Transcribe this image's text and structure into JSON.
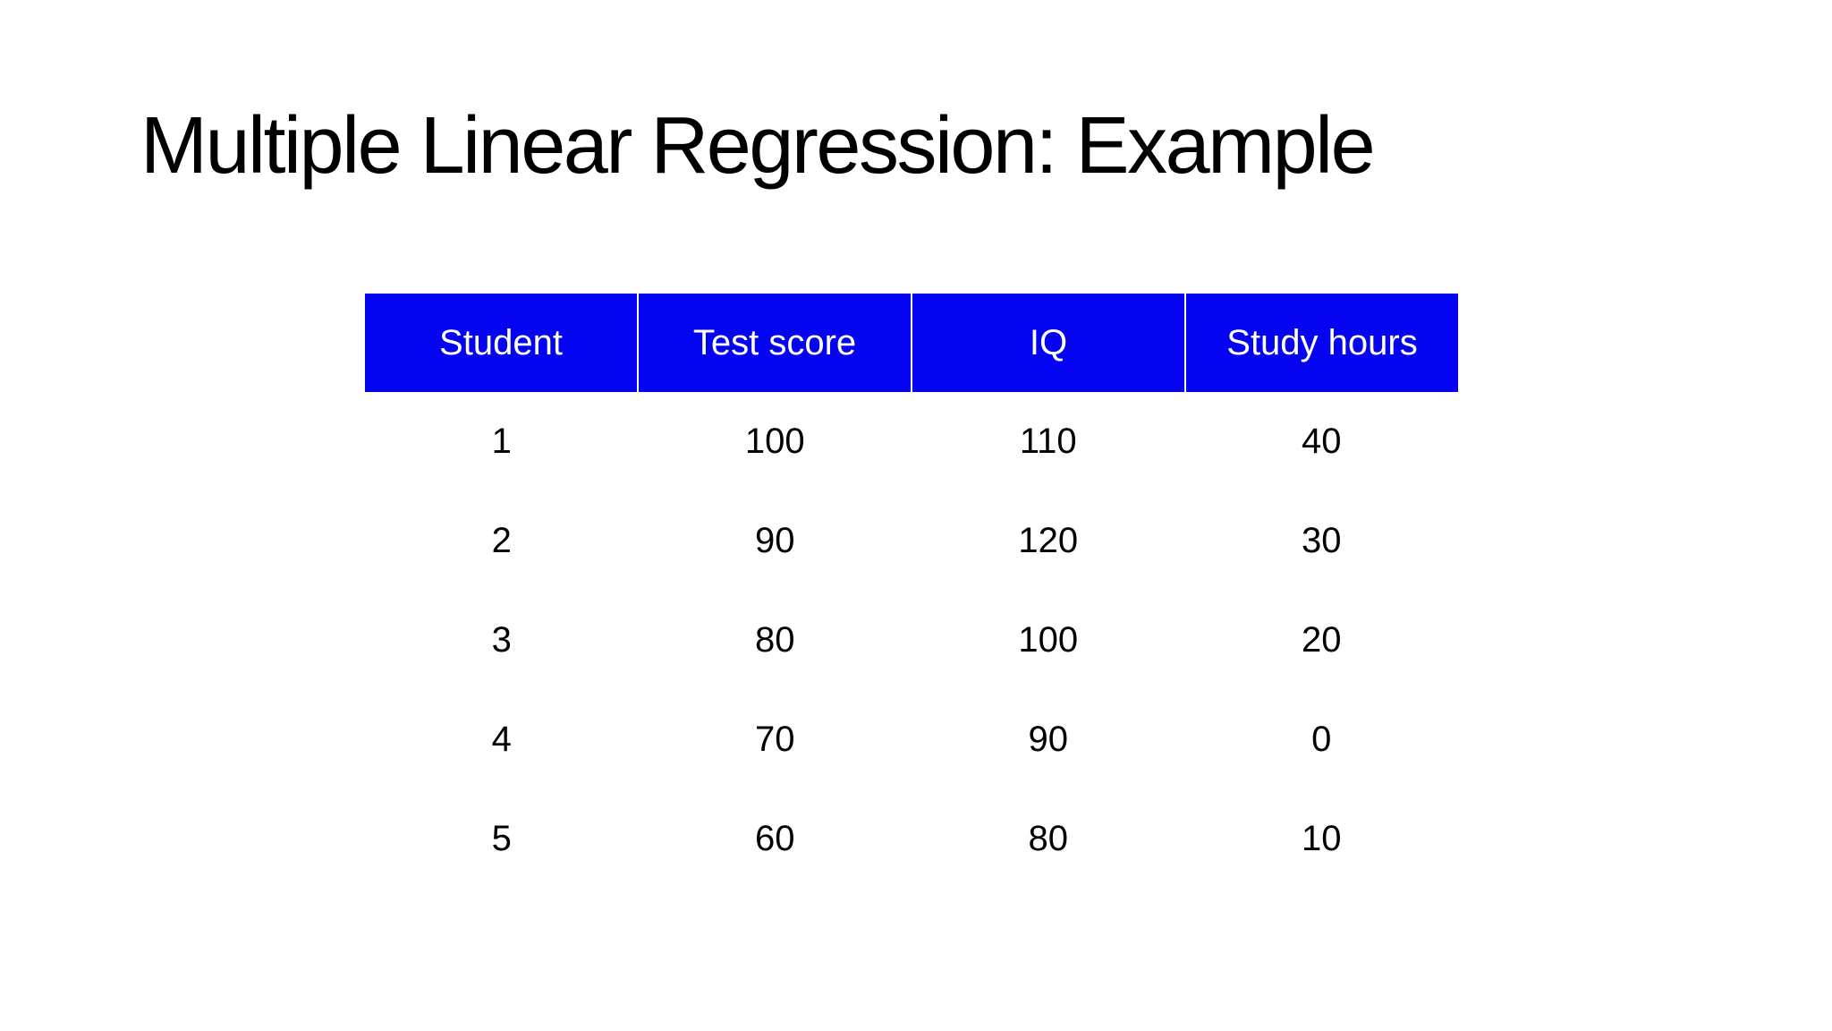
{
  "slide": {
    "title": "Multiple Linear Regression: Example"
  },
  "colors": {
    "slide-bg": "#ffffff",
    "title-text": "#000000",
    "header-bg": "#0404f0",
    "header-text": "#ffffff",
    "body-text": "#000000"
  },
  "table": {
    "columns": [
      "Student",
      "Test score",
      "IQ",
      "Study hours"
    ],
    "rows": [
      [
        "1",
        "100",
        "110",
        "40"
      ],
      [
        "2",
        "90",
        "120",
        "30"
      ],
      [
        "3",
        "80",
        "100",
        "20"
      ],
      [
        "4",
        "70",
        "90",
        "0"
      ],
      [
        "5",
        "60",
        "80",
        "10"
      ]
    ]
  },
  "chart_data": {
    "type": "table",
    "title": "Multiple Linear Regression: Example",
    "columns": [
      "Student",
      "Test score",
      "IQ",
      "Study hours"
    ],
    "rows": [
      [
        1,
        100,
        110,
        40
      ],
      [
        2,
        90,
        120,
        30
      ],
      [
        3,
        80,
        100,
        20
      ],
      [
        4,
        70,
        90,
        0
      ],
      [
        5,
        60,
        80,
        10
      ]
    ]
  }
}
